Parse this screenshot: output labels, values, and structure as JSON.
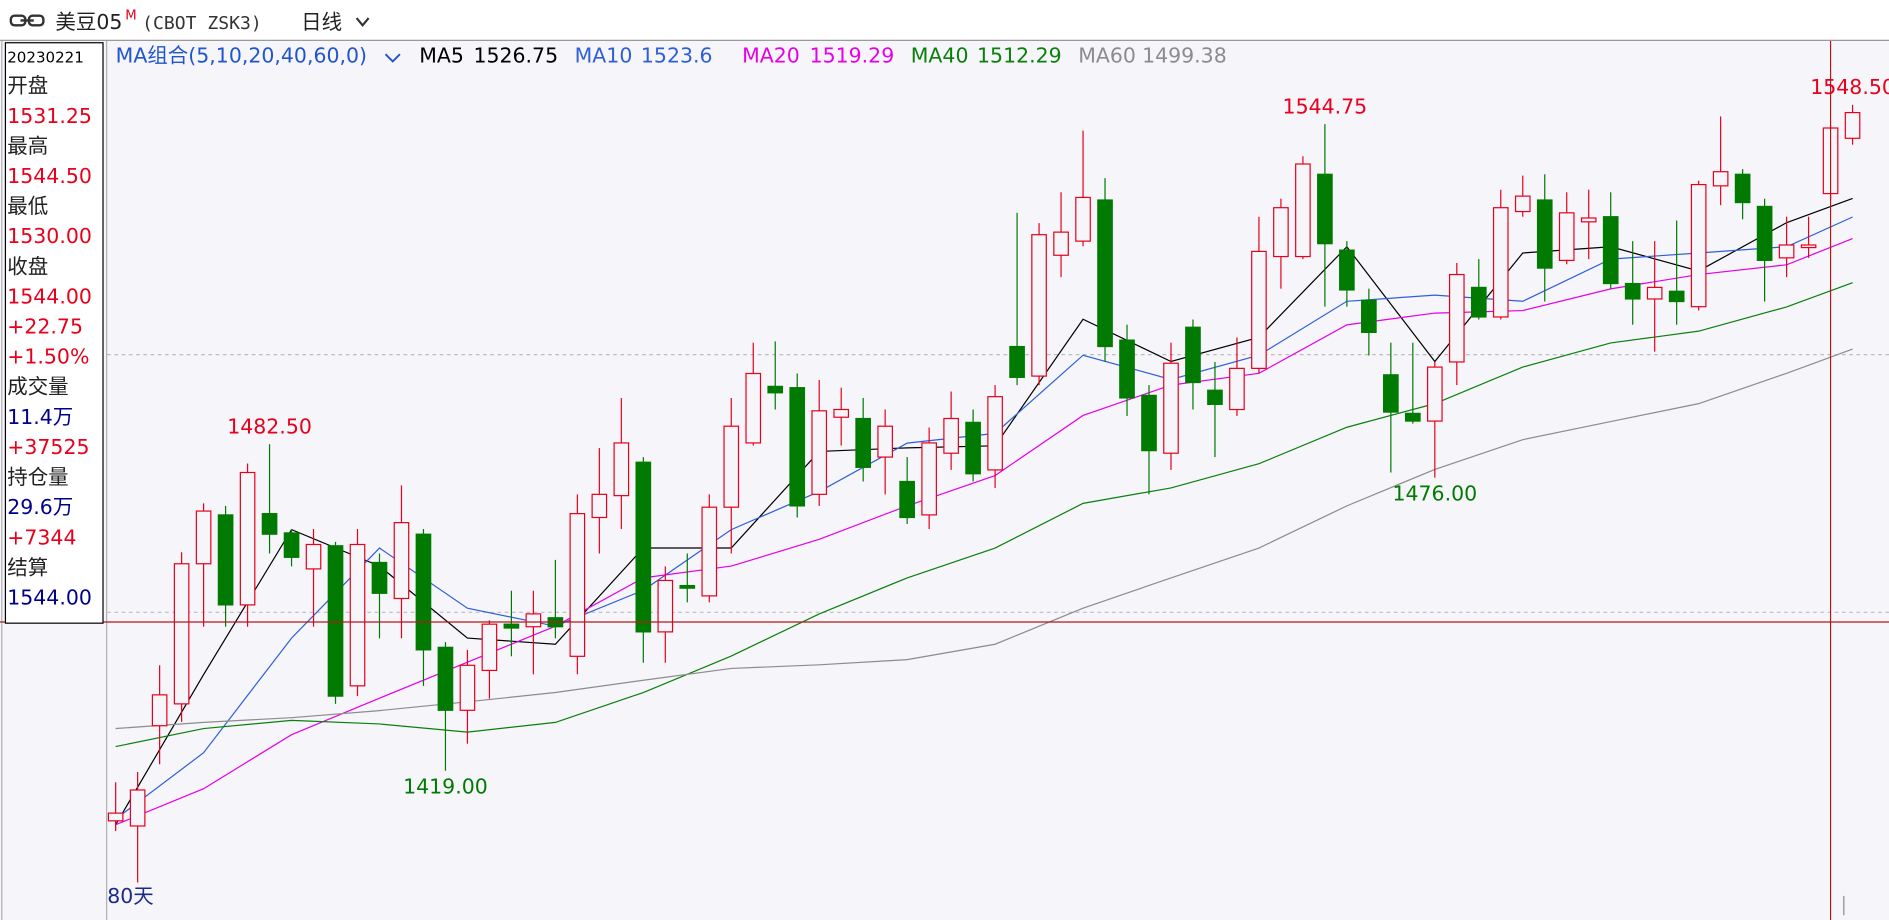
{
  "header": {
    "symbol": "美豆05",
    "badge": "M",
    "code": "(CBOT ZSK3)",
    "period": "日线"
  },
  "info_panel": {
    "date": "20230221",
    "rows": [
      {
        "text": "开盘",
        "color": "#222222"
      },
      {
        "text": "1531.25",
        "color": "#e8001c"
      },
      {
        "text": "最高",
        "color": "#222222"
      },
      {
        "text": "1544.50",
        "color": "#e8001c"
      },
      {
        "text": "最低",
        "color": "#222222"
      },
      {
        "text": "1530.00",
        "color": "#e8001c"
      },
      {
        "text": "收盘",
        "color": "#222222"
      },
      {
        "text": "1544.00",
        "color": "#e8001c"
      },
      {
        "text": "+22.75",
        "color": "#e8001c"
      },
      {
        "text": "+1.50%",
        "color": "#e8001c"
      },
      {
        "text": "成交量",
        "color": "#222222"
      },
      {
        "text": "11.4万",
        "color": "#00008b"
      },
      {
        "text": "+37525",
        "color": "#e8001c"
      },
      {
        "text": "持仓量",
        "color": "#222222"
      },
      {
        "text": "29.6万",
        "color": "#00008b"
      },
      {
        "text": "+7344",
        "color": "#e8001c"
      },
      {
        "text": "结算",
        "color": "#222222"
      },
      {
        "text": "1544.00",
        "color": "#00008b"
      }
    ]
  },
  "chart_data": {
    "type": "candlestick",
    "indicator_label": "MA组合(5,10,20,40,60,0)",
    "range_label": "80天",
    "up_color": "#e8001c",
    "down_color": "#007a00",
    "ylim": [
      1390.9,
      1560.7
    ],
    "open": [
      1409.25,
      1408.25,
      1427.75,
      1432.0,
      1459.25,
      1468.75,
      1451.25,
      1469.0,
      1465.25,
      1458.25,
      1462.75,
      1435.5,
      1459.5,
      1452.5,
      1465.0,
      1443.0,
      1430.75,
      1438.5,
      1447.5,
      1447.0,
      1448.75,
      1441.25,
      1468.25,
      1472.5,
      1479.0,
      1446.0,
      1455.0,
      1453.0,
      1470.25,
      1482.75,
      1493.75,
      1493.5,
      1472.75,
      1487.75,
      1487.5,
      1480.0,
      1475.25,
      1468.75,
      1480.75,
      1486.75,
      1477.5,
      1501.5,
      1495.75,
      1519.25,
      1522.0,
      1530.0,
      1502.75,
      1492.0,
      1480.75,
      1505.25,
      1493.0,
      1489.25,
      1497.25,
      1519.0,
      1519.0,
      1535.0,
      1520.25,
      1510.5,
      1496.0,
      1488.5,
      1487.0,
      1498.5,
      1513.0,
      1507.25,
      1527.75,
      1530.0,
      1518.25,
      1525.75,
      1526.75,
      1513.75,
      1510.75,
      1512.25,
      1509.25,
      1532.75,
      1535.0,
      1528.75,
      1518.75,
      1520.75,
      1531.25,
      1542.0
    ],
    "high": [
      1416.75,
      1418.75,
      1439.5,
      1461.5,
      1471.0,
      1470.5,
      1478.75,
      1482.5,
      1466.0,
      1466.0,
      1463.5,
      1466.0,
      1461.25,
      1474.5,
      1466.0,
      1444.0,
      1442.5,
      1448.25,
      1454.0,
      1454.0,
      1460.0,
      1472.75,
      1481.75,
      1491.5,
      1480.0,
      1458.75,
      1461.25,
      1472.75,
      1491.5,
      1502.25,
      1502.5,
      1496.25,
      1495.0,
      1493.5,
      1491.5,
      1489.25,
      1480.0,
      1485.75,
      1492.75,
      1489.25,
      1494.0,
      1527.5,
      1525.5,
      1531.5,
      1543.5,
      1534.25,
      1505.75,
      1494.0,
      1502.25,
      1506.75,
      1498.5,
      1503.25,
      1526.75,
      1530.25,
      1538.5,
      1544.75,
      1522.0,
      1512.75,
      1502.25,
      1502.25,
      1498.5,
      1517.75,
      1518.5,
      1532.0,
      1534.75,
      1535.0,
      1531.5,
      1532.0,
      1531.5,
      1522.0,
      1522.0,
      1526.0,
      1533.75,
      1546.25,
      1536.0,
      1530.25,
      1526.75,
      1526.75,
      1544.5,
      1548.5
    ],
    "low": [
      1407.25,
      1397.25,
      1420.25,
      1428.5,
      1447.0,
      1447.0,
      1447.0,
      1461.25,
      1458.75,
      1447.0,
      1432.0,
      1433.5,
      1444.75,
      1444.75,
      1435.5,
      1419.0,
      1424.25,
      1433.0,
      1441.25,
      1437.75,
      1444.75,
      1437.75,
      1461.25,
      1466.0,
      1440.0,
      1440.0,
      1451.75,
      1451.75,
      1461.25,
      1482.25,
      1489.25,
      1468.25,
      1470.5,
      1482.25,
      1475.25,
      1472.75,
      1467.0,
      1466.0,
      1477.5,
      1475.25,
      1474.0,
      1494.0,
      1494.0,
      1515.0,
      1521.0,
      1498.5,
      1488.0,
      1472.75,
      1477.5,
      1489.25,
      1480.0,
      1488.0,
      1496.25,
      1512.75,
      1518.5,
      1509.25,
      1509.25,
      1499.75,
      1477.0,
      1486.5,
      1476.0,
      1494.0,
      1506.75,
      1506.75,
      1526.75,
      1510.25,
      1517.5,
      1518.5,
      1512.75,
      1505.75,
      1500.5,
      1505.75,
      1508.5,
      1529.0,
      1526.25,
      1510.25,
      1515.0,
      1518.75,
      1530.0,
      1540.75
    ],
    "close": [
      1410.75,
      1415.25,
      1433.75,
      1459.25,
      1469.5,
      1451.25,
      1477.0,
      1465.0,
      1460.5,
      1463.0,
      1433.5,
      1463.0,
      1453.5,
      1467.25,
      1442.5,
      1430.75,
      1439.5,
      1447.5,
      1446.75,
      1449.5,
      1447.0,
      1469.0,
      1472.75,
      1482.75,
      1446.0,
      1456.0,
      1454.5,
      1470.25,
      1486.0,
      1496.25,
      1492.5,
      1470.5,
      1489.0,
      1489.25,
      1478.0,
      1486.0,
      1468.25,
      1482.75,
      1487.5,
      1476.75,
      1491.75,
      1495.5,
      1523.25,
      1523.75,
      1530.5,
      1501.5,
      1491.5,
      1481.25,
      1498.25,
      1494.5,
      1490.25,
      1497.25,
      1520.0,
      1528.5,
      1537.0,
      1521.5,
      1512.5,
      1504.25,
      1488.75,
      1487.0,
      1497.5,
      1515.5,
      1507.25,
      1528.5,
      1530.75,
      1516.75,
      1527.5,
      1526.5,
      1513.75,
      1510.75,
      1513.0,
      1510.25,
      1533.0,
      1535.5,
      1529.5,
      1518.25,
      1521.25,
      1521.25,
      1544.0,
      1547.0
    ],
    "extremes": [
      {
        "value": 1482.5,
        "label": "1482.50",
        "color": "#e8001c"
      },
      {
        "value": 1419,
        "label": "1419.00",
        "color": "#007a00"
      },
      {
        "value": 1544.75,
        "label": "1544.75",
        "color": "#e8001c"
      },
      {
        "value": 1476,
        "label": "1476.00",
        "color": "#007a00"
      },
      {
        "value": 1548.5,
        "label": "1548.50",
        "color": "#e8001c"
      }
    ],
    "series": [
      {
        "name": "MA5",
        "color": "#000000",
        "legend_value": 1526.75,
        "x": [
          1,
          5,
          9,
          13,
          17,
          21,
          25,
          29,
          33,
          37,
          41,
          45,
          49,
          53,
          57,
          61,
          65,
          69,
          73,
          77,
          80
        ],
        "values": [
          1408.5,
          1437.7,
          1465.9,
          1458.8,
          1444.8,
          1443.6,
          1462.3,
          1462.3,
          1481.1,
          1481.8,
          1482.2,
          1506.8,
          1498.6,
          1503.3,
          1520.9,
          1498.6,
          1519.7,
          1520.9,
          1516.2,
          1525.6,
          1530.3
        ]
      },
      {
        "name": "MA10",
        "color": "#2f5fd8",
        "legend_value": 1523.6,
        "x": [
          1,
          5,
          9,
          13,
          17,
          21,
          25,
          29,
          33,
          37,
          41,
          45,
          49,
          53,
          57,
          61,
          65,
          69,
          73,
          77,
          80
        ],
        "values": [
          1409.6,
          1422.5,
          1444.8,
          1462.3,
          1450.6,
          1447.1,
          1454.1,
          1465.9,
          1473.3,
          1482.7,
          1484.6,
          1499.8,
          1495.1,
          1499.8,
          1510.3,
          1511.5,
          1510.3,
          1518.5,
          1519.7,
          1520.9,
          1526.7
        ]
      },
      {
        "name": "MA20",
        "color": "#e600e6",
        "legend_value": 1519.29,
        "x": [
          1,
          5,
          9,
          13,
          17,
          21,
          25,
          29,
          33,
          37,
          41,
          45,
          49,
          53,
          57,
          61,
          65,
          69,
          73,
          77,
          80
        ],
        "values": [
          1408.5,
          1415.5,
          1426.0,
          1433.1,
          1440.1,
          1447.1,
          1456.5,
          1458.8,
          1464.0,
          1470.5,
          1476.4,
          1488.1,
          1494.0,
          1496.3,
          1505.7,
          1508.0,
          1508.5,
          1512.7,
          1515.5,
          1517.4,
          1522.5
        ]
      },
      {
        "name": "MA40",
        "color": "#0a800a",
        "legend_value": 1512.29,
        "x": [
          1,
          5,
          9,
          13,
          17,
          21,
          25,
          29,
          33,
          37,
          41,
          45,
          49,
          53,
          57,
          61,
          65,
          69,
          73,
          77,
          80
        ],
        "values": [
          1423.7,
          1427.2,
          1428.8,
          1428.1,
          1426.5,
          1428.4,
          1434.2,
          1441.3,
          1449.5,
          1456.5,
          1462.3,
          1471.0,
          1474.0,
          1478.7,
          1485.8,
          1490.4,
          1497.5,
          1502.2,
          1504.5,
          1509.2,
          1513.9
        ]
      },
      {
        "name": "MA60",
        "color": "#8c8c8c",
        "legend_value": 1499.38,
        "x": [
          1,
          5,
          9,
          13,
          17,
          21,
          25,
          29,
          33,
          37,
          41,
          45,
          49,
          53,
          57,
          61,
          65,
          69,
          73,
          77,
          80
        ],
        "values": [
          1427.2,
          1428.4,
          1429.3,
          1430.7,
          1432.4,
          1434.2,
          1436.6,
          1438.9,
          1439.6,
          1440.6,
          1443.6,
          1450.6,
          1456.5,
          1462.3,
          1470.5,
          1477.6,
          1483.4,
          1486.9,
          1490.4,
          1496.3,
          1501.0
        ]
      }
    ]
  }
}
